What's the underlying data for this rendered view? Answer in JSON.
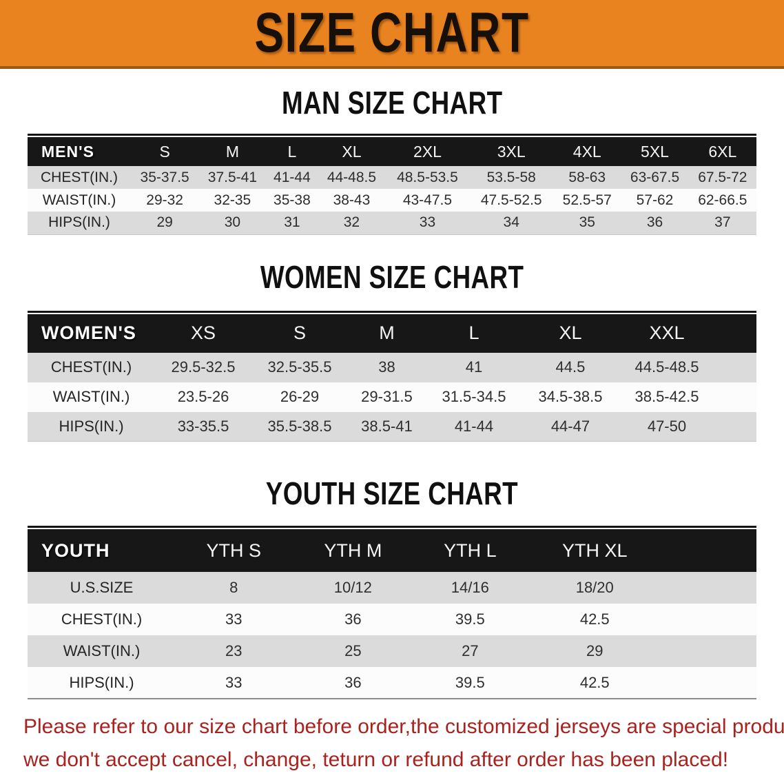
{
  "banner": {
    "title": "SIZE CHART"
  },
  "headings": {
    "men": "MAN SIZE CHART",
    "women": "WOMEN SIZE CHART",
    "youth": "YOUTH SIZE CHART"
  },
  "tables": {
    "men": {
      "header": [
        "MEN'S",
        "S",
        "M",
        "L",
        "XL",
        "2XL",
        "3XL",
        "4XL",
        "5XL",
        "6XL"
      ],
      "rows": [
        {
          "label": "CHEST(IN.)",
          "values": [
            "35-37.5",
            "37.5-41",
            "41-44",
            "44-48.5",
            "48.5-53.5",
            "53.5-58",
            "58-63",
            "63-67.5",
            "67.5-72"
          ]
        },
        {
          "label": "WAIST(IN.)",
          "values": [
            "29-32",
            "32-35",
            "35-38",
            "38-43",
            "43-47.5",
            "47.5-52.5",
            "52.5-57",
            "57-62",
            "62-66.5"
          ]
        },
        {
          "label": "HIPS(IN.)",
          "values": [
            "29",
            "30",
            "31",
            "32",
            "33",
            "34",
            "35",
            "36",
            "37"
          ]
        }
      ]
    },
    "women": {
      "header": [
        "WOMEN'S",
        "XS",
        "S",
        "M",
        "L",
        "XL",
        "XXL"
      ],
      "rows": [
        {
          "label": "CHEST(IN.)",
          "values": [
            "29.5-32.5",
            "32.5-35.5",
            "38",
            "41",
            "44.5",
            "44.5-48.5"
          ]
        },
        {
          "label": "WAIST(IN.)",
          "values": [
            "23.5-26",
            "26-29",
            "29-31.5",
            "31.5-34.5",
            "34.5-38.5",
            "38.5-42.5"
          ]
        },
        {
          "label": "HIPS(IN.)",
          "values": [
            "33-35.5",
            "35.5-38.5",
            "38.5-41",
            "41-44",
            "44-47",
            "47-50"
          ]
        }
      ]
    },
    "youth": {
      "header": [
        "YOUTH",
        "YTH S",
        "YTH M",
        "YTH L",
        "YTH XL"
      ],
      "rows": [
        {
          "label": "U.S.SIZE",
          "values": [
            "8",
            "10/12",
            "14/16",
            "18/20"
          ]
        },
        {
          "label": "CHEST(IN.)",
          "values": [
            "33",
            "36",
            "39.5",
            "42.5"
          ]
        },
        {
          "label": "WAIST(IN.)",
          "values": [
            "23",
            "25",
            "27",
            "29"
          ]
        },
        {
          "label": "HIPS(IN.)",
          "values": [
            "33",
            "36",
            "39.5",
            "42.5"
          ]
        }
      ]
    }
  },
  "footer": {
    "line1": "Please refer to our size chart before order,the customized jerseys are special products,",
    "line2": "we don't accept cancel, change, teturn or refund after order has been placed!"
  },
  "colors": {
    "banner_orange": "#E8831F",
    "header_black": "#171717",
    "row_gray": "#DBDBDB",
    "row_white": "#FCFCFC",
    "disclaimer_red": "#A8231F"
  }
}
